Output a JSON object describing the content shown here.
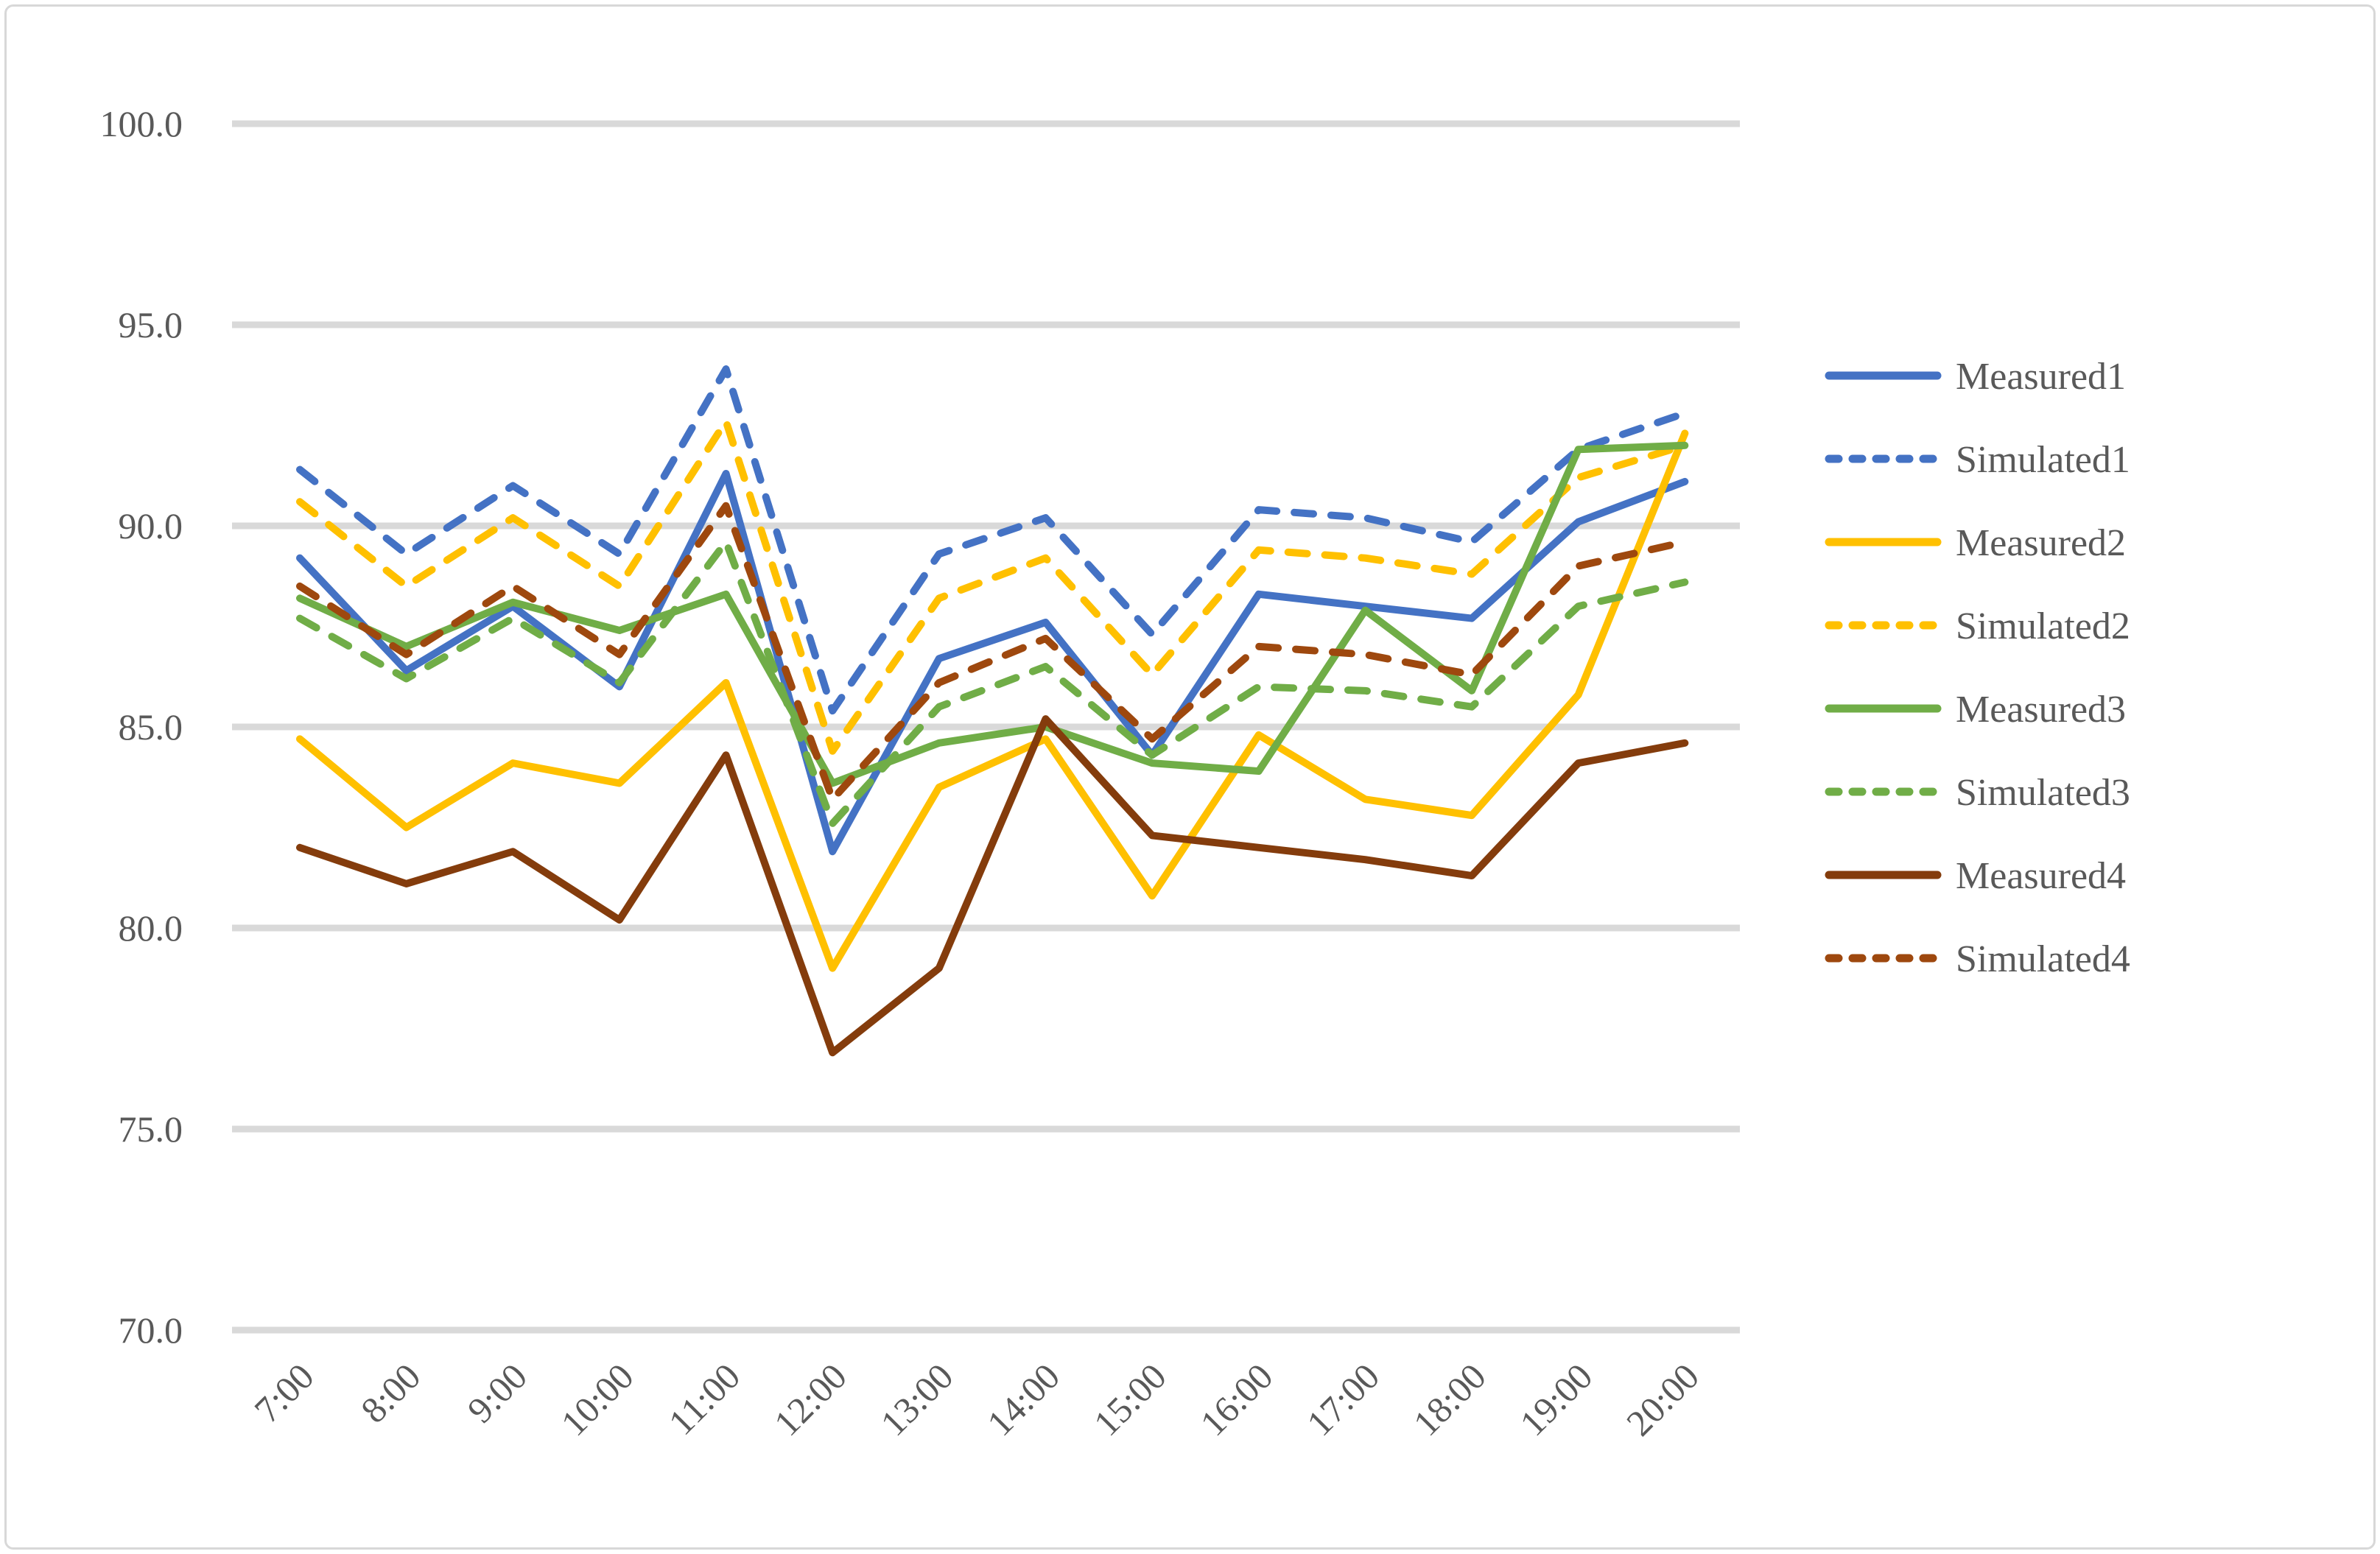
{
  "figure": {
    "background": "#ffffff",
    "border_color": "#D8D8D8",
    "text_color": "#595959",
    "gridline_color": "#D9D9D9"
  },
  "chart_data": {
    "type": "line",
    "title": "",
    "xlabel": "",
    "ylabel": "",
    "grid": true,
    "legend_position": "right",
    "ylim": [
      70.0,
      100.0
    ],
    "ytick_step": 5.0,
    "ytick_labels": [
      "100.0",
      "95.0",
      "90.0",
      "85.0",
      "80.0",
      "75.0",
      "70.0"
    ],
    "x_categories": [
      "7:00",
      "8:00",
      "9:00",
      "10:00",
      "11:00",
      "12:00",
      "13:00",
      "14:00",
      "15:00",
      "16:00",
      "17:00",
      "18:00",
      "19:00",
      "20:00"
    ],
    "series": [
      {
        "name": "Measured1",
        "color": "#4472C4",
        "dashed": false,
        "values": [
          89.2,
          86.4,
          88.0,
          86.0,
          91.3,
          81.9,
          86.7,
          87.6,
          84.3,
          88.3,
          88.0,
          87.7,
          90.1,
          91.1
        ]
      },
      {
        "name": "Simulated1",
        "color": "#4472C4",
        "dashed": true,
        "values": [
          91.4,
          89.3,
          91.0,
          89.3,
          93.9,
          85.4,
          89.3,
          90.2,
          87.3,
          90.4,
          90.2,
          89.6,
          91.9,
          92.8
        ]
      },
      {
        "name": "Measured2",
        "color": "#FFC000",
        "dashed": false,
        "values": [
          84.7,
          82.5,
          84.1,
          83.6,
          86.1,
          79.0,
          83.5,
          84.7,
          80.8,
          84.8,
          83.2,
          82.8,
          85.8,
          92.3
        ]
      },
      {
        "name": "Simulated2",
        "color": "#FFC000",
        "dashed": true,
        "values": [
          90.6,
          88.5,
          90.2,
          88.5,
          92.6,
          84.4,
          88.2,
          89.2,
          86.3,
          89.4,
          89.2,
          88.8,
          91.2,
          92.0
        ]
      },
      {
        "name": "Measured3",
        "color": "#70AD47",
        "dashed": false,
        "values": [
          88.2,
          87.0,
          88.1,
          87.4,
          88.3,
          83.6,
          84.6,
          85.0,
          84.1,
          83.9,
          87.9,
          85.9,
          91.9,
          92.0
        ]
      },
      {
        "name": "Simulated3",
        "color": "#70AD47",
        "dashed": true,
        "values": [
          87.7,
          86.2,
          87.7,
          86.1,
          89.6,
          82.6,
          85.5,
          86.5,
          84.3,
          86.0,
          85.9,
          85.5,
          88.0,
          88.6
        ]
      },
      {
        "name": "Measured4",
        "color": "#843C0C",
        "dashed": false,
        "values": [
          82.0,
          81.1,
          81.9,
          80.2,
          84.3,
          76.9,
          79.0,
          85.2,
          82.3,
          82.0,
          81.7,
          81.3,
          84.1,
          84.6
        ]
      },
      {
        "name": "Simulated4",
        "color": "#9E480E",
        "dashed": true,
        "values": [
          88.5,
          86.8,
          88.5,
          86.8,
          90.5,
          83.2,
          86.1,
          87.2,
          84.7,
          87.0,
          86.8,
          86.3,
          89.0,
          89.6
        ]
      }
    ]
  }
}
